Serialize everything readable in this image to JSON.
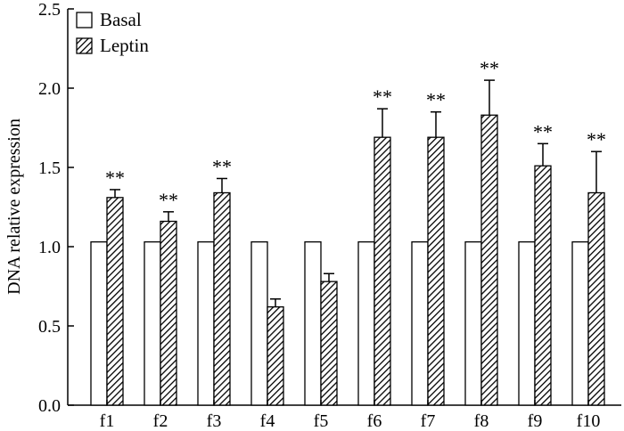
{
  "chart_data": {
    "type": "bar",
    "title": "",
    "xlabel": "",
    "ylabel": "DNA relative expression",
    "ylim": [
      0,
      2.5
    ],
    "yticks": [
      "0.0",
      "0.5",
      "1.0",
      "1.5",
      "2.0",
      "2.5"
    ],
    "categories": [
      "f1",
      "f2",
      "f3",
      "f4",
      "f5",
      "f6",
      "f7",
      "f8",
      "f9",
      "f10"
    ],
    "series": [
      {
        "name": "Basal",
        "fill": "white",
        "values": [
          1.03,
          1.03,
          1.03,
          1.03,
          1.03,
          1.03,
          1.03,
          1.03,
          1.03,
          1.03
        ]
      },
      {
        "name": "Leptin",
        "fill": "hatched",
        "values": [
          1.31,
          1.16,
          1.34,
          0.62,
          0.78,
          1.69,
          1.69,
          1.83,
          1.51,
          1.34
        ],
        "errors": [
          0.05,
          0.06,
          0.09,
          0.05,
          0.05,
          0.18,
          0.16,
          0.22,
          0.14,
          0.26
        ],
        "annotations": [
          "**",
          "**",
          "**",
          "",
          "",
          "**",
          "**",
          "**",
          "**",
          "**"
        ]
      }
    ],
    "legend_position": "top-left",
    "grid": false
  },
  "colors": {
    "ink": "#000000",
    "background": "#ffffff"
  }
}
